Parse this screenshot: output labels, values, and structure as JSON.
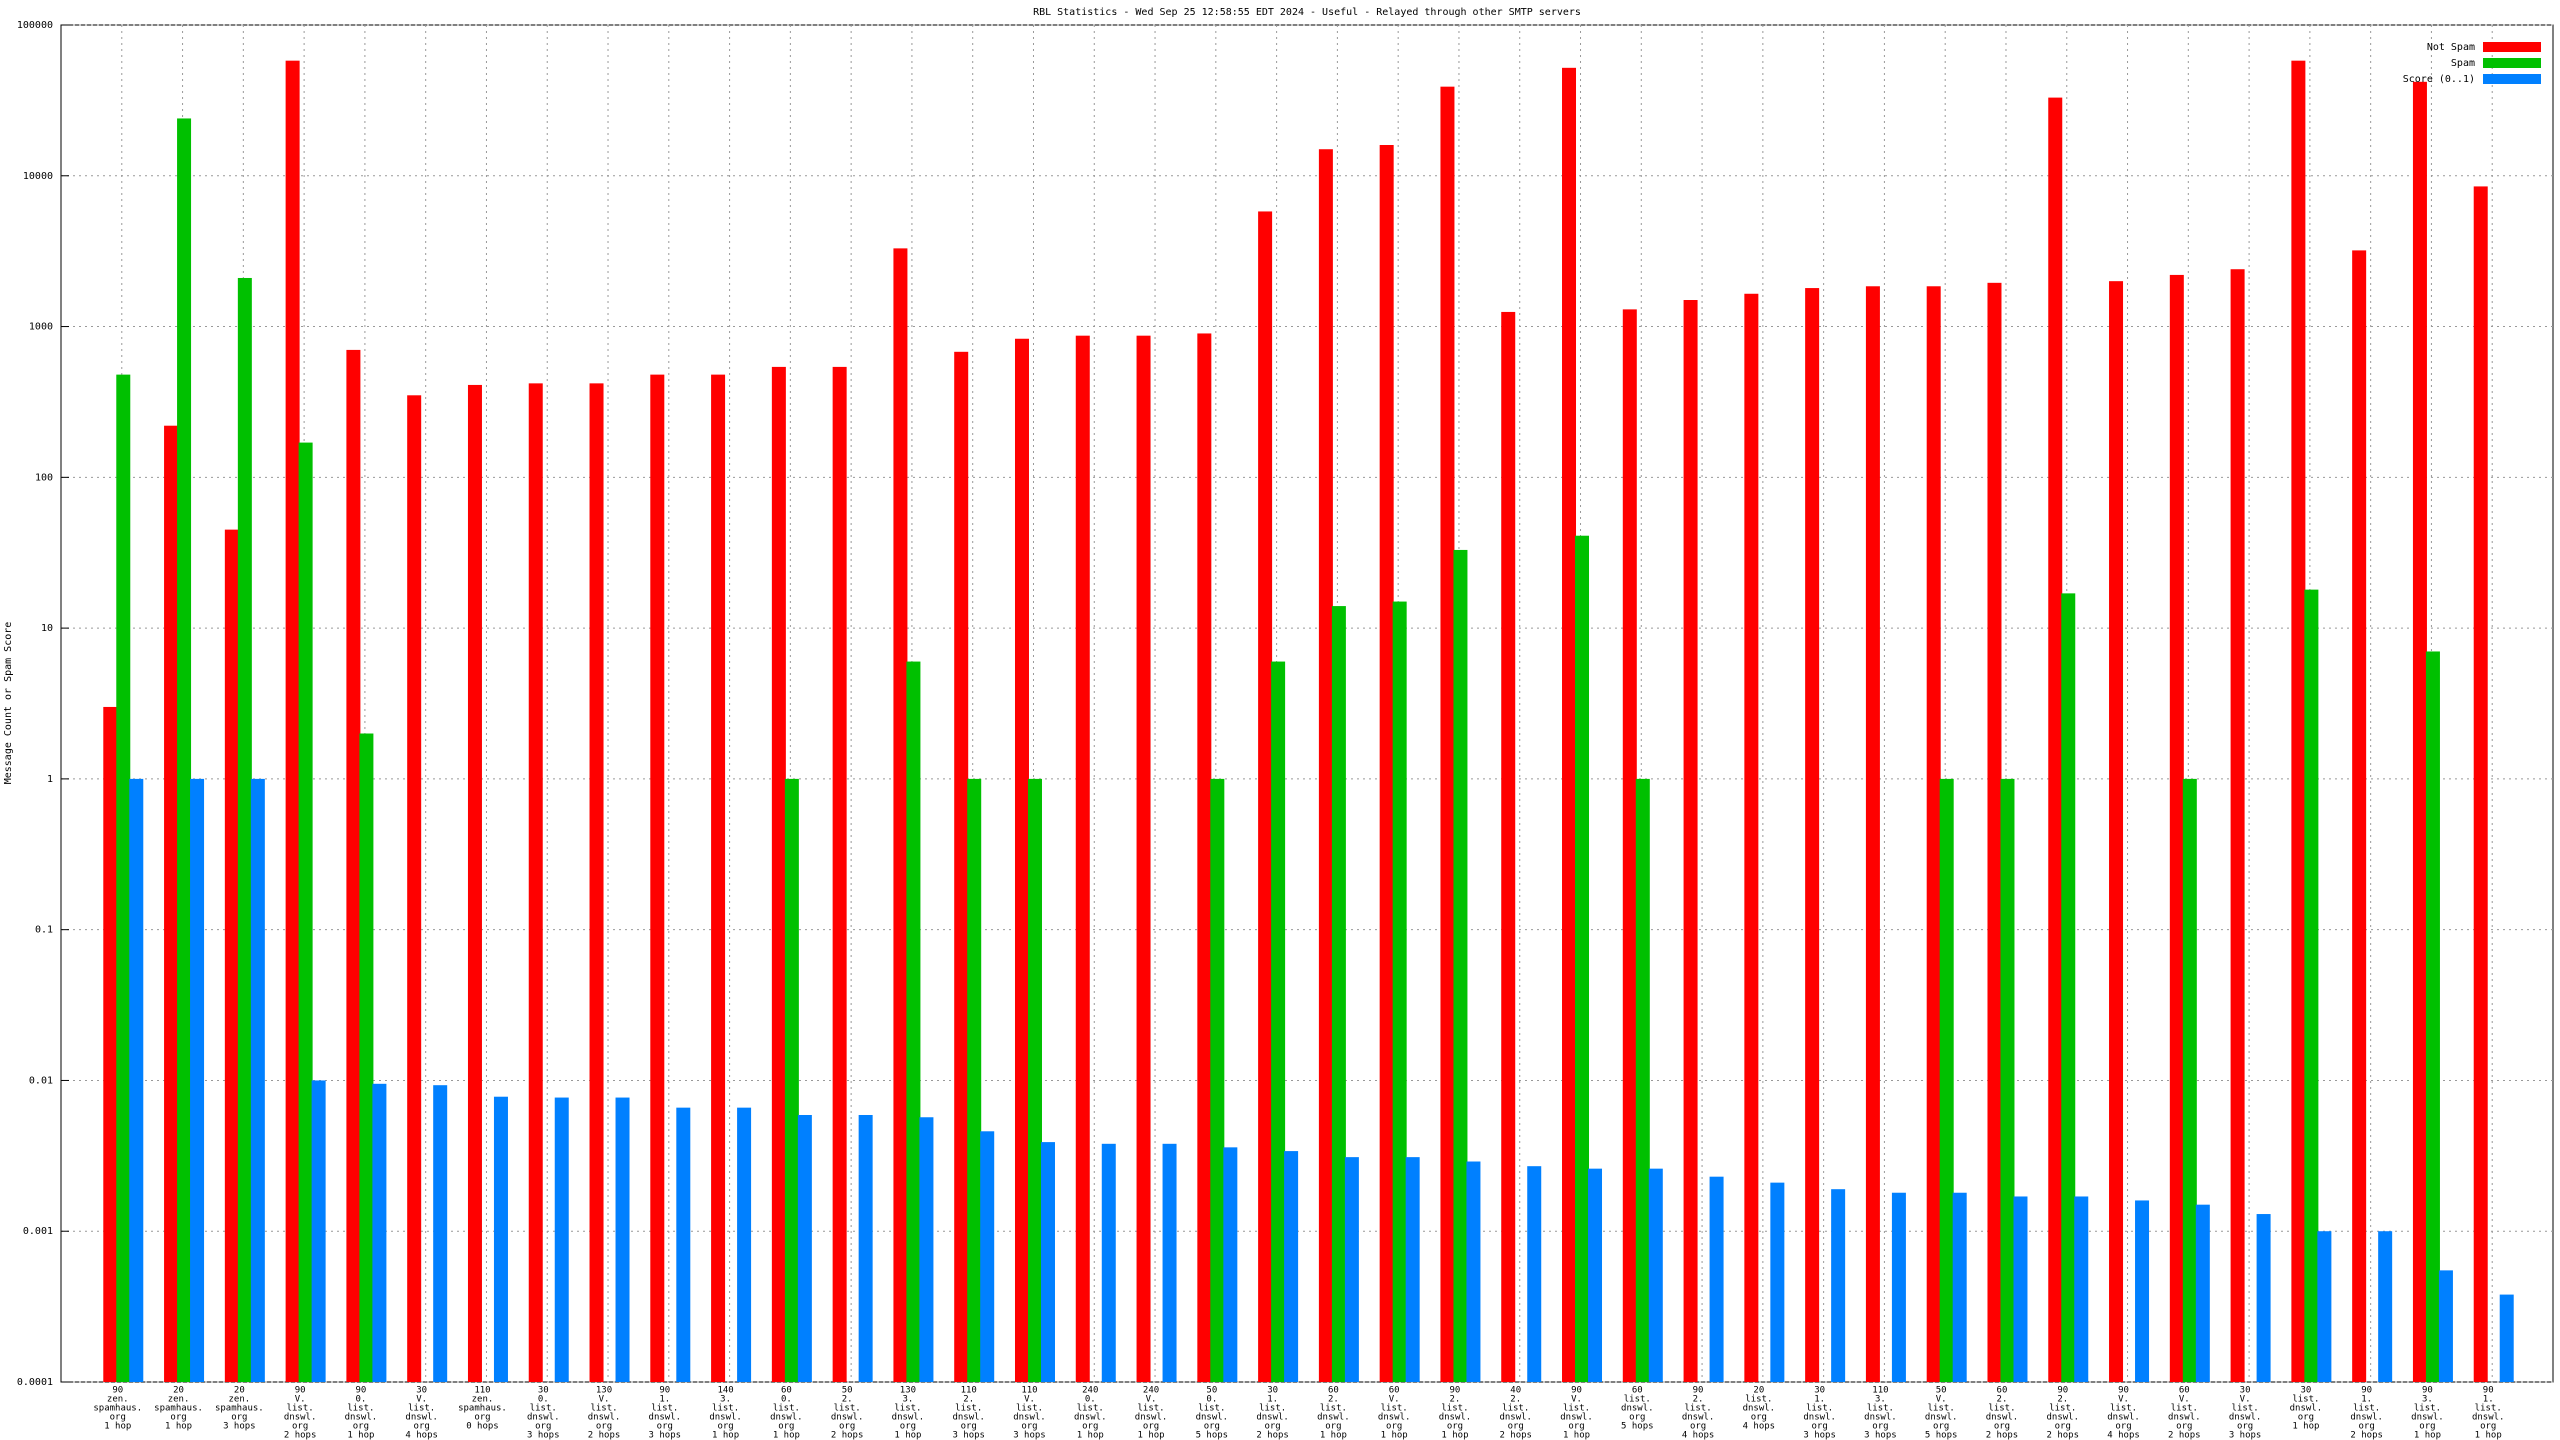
{
  "chart_data": {
    "type": "bar",
    "title": "RBL Statistics - Wed Sep 25 12:58:55 EDT 2024 - Useful - Relayed through other SMTP servers",
    "y_label": "Message Count or Spam Score",
    "log_scale": true,
    "grid": true,
    "legend": "top-right",
    "ylim": [
      0.0001,
      100000
    ],
    "yticks": [
      0.0001,
      0.001,
      0.01,
      0.1,
      1,
      10,
      100,
      1000,
      10000,
      100000
    ],
    "categories": [
      [
        "90",
        "zen.",
        "spamhaus.",
        "org",
        "1 hop"
      ],
      [
        "20",
        "zen.",
        "spamhaus.",
        "org",
        "1 hop"
      ],
      [
        "20",
        "zen.",
        "spamhaus.",
        "org",
        "3 hops"
      ],
      [
        "90",
        "V.",
        "list.",
        "dnswl.",
        "org",
        "2 hops"
      ],
      [
        "90",
        "0.",
        "list.",
        "dnswl.",
        "org",
        "1 hop"
      ],
      [
        "30",
        "V.",
        "list.",
        "dnswl.",
        "org",
        "4 hops"
      ],
      [
        "110",
        "zen.",
        "spamhaus.",
        "org",
        "0 hops"
      ],
      [
        "30",
        "0.",
        "list.",
        "dnswl.",
        "org",
        "3 hops"
      ],
      [
        "130",
        "V.",
        "list.",
        "dnswl.",
        "org",
        "2 hops"
      ],
      [
        "90",
        "1.",
        "list.",
        "dnswl.",
        "org",
        "3 hops"
      ],
      [
        "140",
        "3.",
        "list.",
        "dnswl.",
        "org",
        "1 hop"
      ],
      [
        "60",
        "0.",
        "list.",
        "dnswl.",
        "org",
        "1 hop"
      ],
      [
        "50",
        "2.",
        "list.",
        "dnswl.",
        "org",
        "2 hops"
      ],
      [
        "130",
        "3.",
        "list.",
        "dnswl.",
        "org",
        "1 hop"
      ],
      [
        "110",
        "2.",
        "list.",
        "dnswl.",
        "org",
        "3 hops"
      ],
      [
        "110",
        "V.",
        "list.",
        "dnswl.",
        "org",
        "3 hops"
      ],
      [
        "240",
        "0.",
        "list.",
        "dnswl.",
        "org",
        "1 hop"
      ],
      [
        "240",
        "V.",
        "list.",
        "dnswl.",
        "org",
        "1 hop"
      ],
      [
        "50",
        "0.",
        "list.",
        "dnswl.",
        "org",
        "5 hops"
      ],
      [
        "30",
        "1.",
        "list.",
        "dnswl.",
        "org",
        "2 hops"
      ],
      [
        "60",
        "2.",
        "list.",
        "dnswl.",
        "org",
        "1 hop"
      ],
      [
        "60",
        "V.",
        "list.",
        "dnswl.",
        "org",
        "1 hop"
      ],
      [
        "90",
        "2.",
        "list.",
        "dnswl.",
        "org",
        "1 hop"
      ],
      [
        "40",
        "2.",
        "list.",
        "dnswl.",
        "org",
        "2 hops"
      ],
      [
        "90",
        "V.",
        "list.",
        "dnswl.",
        "org",
        "1 hop"
      ],
      [
        "60",
        "list.",
        "dnswl.",
        "org",
        "5 hops"
      ],
      [
        "90",
        "2.",
        "list.",
        "dnswl.",
        "org",
        "4 hops"
      ],
      [
        "20",
        "list.",
        "dnswl.",
        "org",
        "4 hops"
      ],
      [
        "30",
        "1.",
        "list.",
        "dnswl.",
        "org",
        "3 hops"
      ],
      [
        "110",
        "3.",
        "list.",
        "dnswl.",
        "org",
        "3 hops"
      ],
      [
        "50",
        "V.",
        "list.",
        "dnswl.",
        "org",
        "5 hops"
      ],
      [
        "60",
        "2.",
        "list.",
        "dnswl.",
        "org",
        "2 hops"
      ],
      [
        "90",
        "2.",
        "list.",
        "dnswl.",
        "org",
        "2 hops"
      ],
      [
        "90",
        "V.",
        "list.",
        "dnswl.",
        "org",
        "4 hops"
      ],
      [
        "60",
        "V.",
        "list.",
        "dnswl.",
        "org",
        "2 hops"
      ],
      [
        "30",
        "V.",
        "list.",
        "dnswl.",
        "org",
        "3 hops"
      ],
      [
        "30",
        "list.",
        "dnswl.",
        "org",
        "1 hop"
      ],
      [
        "90",
        "1.",
        "list.",
        "dnswl.",
        "org",
        "2 hops"
      ],
      [
        "90",
        "3.",
        "list.",
        "dnswl.",
        "org",
        "1 hop"
      ],
      [
        "90",
        "1.",
        "list.",
        "dnswl.",
        "org",
        "1 hop"
      ]
    ],
    "series": [
      {
        "name": "Not Spam",
        "color": "#ff0000",
        "values": [
          3,
          220,
          45,
          58000,
          700,
          350,
          410,
          420,
          420,
          480,
          480,
          540,
          540,
          3300,
          680,
          830,
          870,
          870,
          900,
          5800,
          15000,
          16000,
          39000,
          1250,
          52000,
          1300,
          1500,
          1650,
          1800,
          1850,
          1850,
          1950,
          33000,
          2000,
          2200,
          2400,
          58000,
          3200,
          42000,
          8500
        ]
      },
      {
        "name": "Spam",
        "color": "#00c000",
        "values": [
          480,
          24000,
          2100,
          170,
          2,
          null,
          null,
          null,
          null,
          null,
          null,
          1,
          null,
          6,
          1,
          1,
          null,
          null,
          1,
          6,
          14,
          15,
          33,
          null,
          41,
          1,
          null,
          null,
          null,
          null,
          1,
          1,
          17,
          null,
          1,
          null,
          18,
          null,
          7,
          null
        ]
      },
      {
        "name": "Score (0..1)",
        "color": "#0080ff",
        "values": [
          1,
          1,
          1,
          0.01,
          0.0095,
          0.0093,
          0.0078,
          0.0077,
          0.0077,
          0.0066,
          0.0066,
          0.0059,
          0.0059,
          0.0057,
          0.0046,
          0.0039,
          0.0038,
          0.0038,
          0.0036,
          0.0034,
          0.0031,
          0.0031,
          0.0029,
          0.0027,
          0.0026,
          0.0026,
          0.0023,
          0.0021,
          0.0019,
          0.0018,
          0.0018,
          0.0017,
          0.0017,
          0.0016,
          0.0015,
          0.0013,
          0.001,
          0.001,
          0.00055,
          0.00038
        ]
      }
    ]
  }
}
